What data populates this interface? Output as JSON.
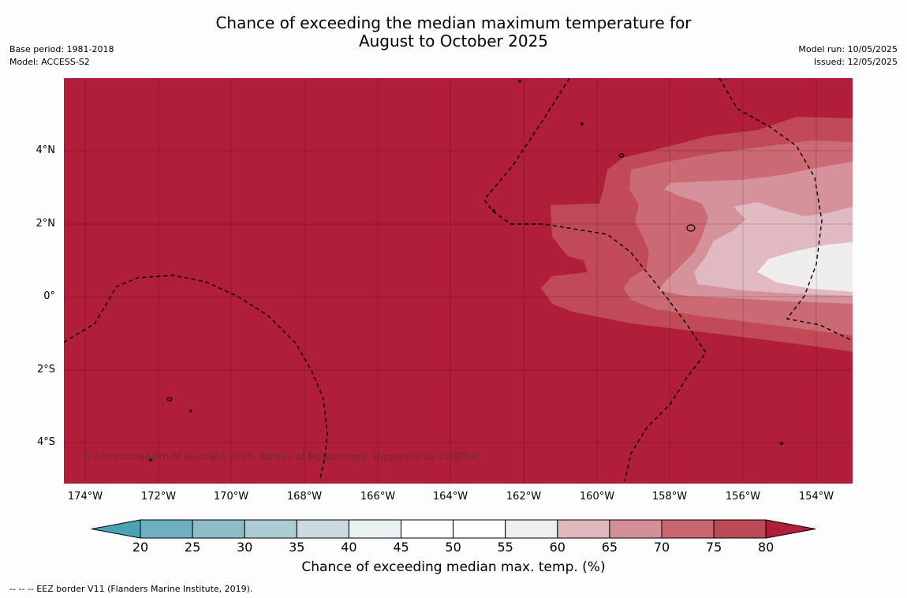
{
  "title_line1": "Chance of exceeding the median maximum temperature for",
  "title_line2": "August to October 2025",
  "meta_left": [
    "Base period: 1981-2018",
    "Model: ACCESS-S2"
  ],
  "meta_right": [
    "Model run: 10/05/2025",
    "Issued: 12/05/2025"
  ],
  "lat_labels": [
    "4°N",
    "2°N",
    "0°",
    "2°S",
    "4°S"
  ],
  "lon_labels": [
    "174°W",
    "172°W",
    "170°W",
    "168°W",
    "166°W",
    "164°W",
    "162°W",
    "160°W",
    "158°W",
    "156°W",
    "154°W"
  ],
  "copyright": "© Commonwealth of Australia 2025, Bureau of Meteorology, supported by COSPPac",
  "colorbar": {
    "title": "Chance of exceeding median max. temp. (%)",
    "ticks": [
      "20",
      "25",
      "30",
      "35",
      "40",
      "45",
      "50",
      "55",
      "60",
      "65",
      "70",
      "75",
      "80"
    ],
    "colors": [
      "#6fb0c0",
      "#8ebcc7",
      "#adcbd2",
      "#cbdade",
      "#eaf1f2",
      "#ffffff",
      "#ffffff",
      "#efefef",
      "#e0b8be",
      "#d48e98",
      "#c8666f",
      "#bc4a55"
    ],
    "under_color": "#4aa3b2",
    "over_color": "#b01e3a"
  },
  "footnote": "--  --  -- EEZ border V11 (Flanders Marine Institute, 2019).",
  "map_colors": {
    "background": "#b01e3a",
    "band_75": "#c04a55",
    "band_70": "#cb6a74",
    "band_65": "#d6929b",
    "band_60": "#e0bac0",
    "band_55": "#efeded"
  }
}
